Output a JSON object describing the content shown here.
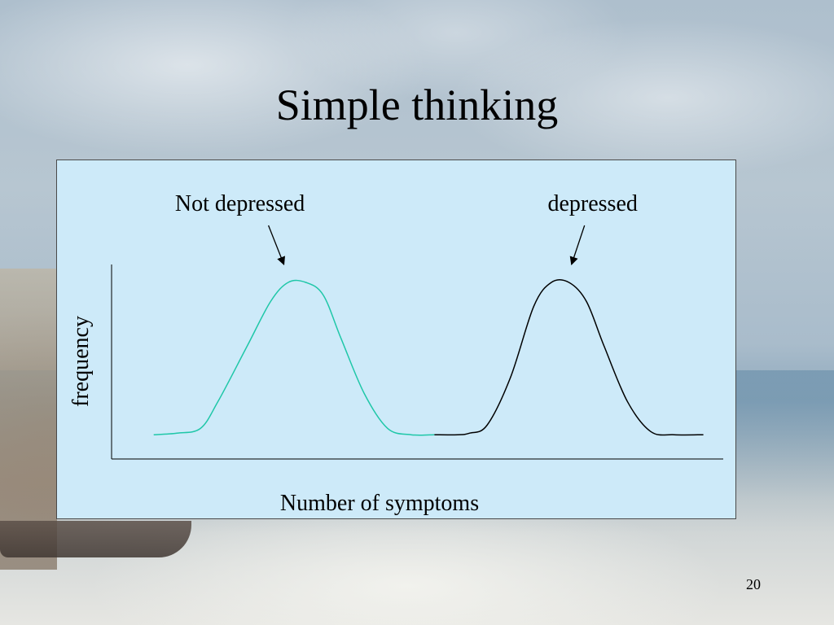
{
  "slide": {
    "title": "Simple thinking",
    "page_number": "20"
  },
  "chart_data": {
    "type": "line",
    "xlabel": "Number of symptoms",
    "ylabel": "frequency",
    "xlim": [
      0,
      100
    ],
    "ylim": [
      0,
      100
    ],
    "grid": false,
    "legend": "none",
    "series": [
      {
        "color": "#1fc7a8",
        "x": [
          4,
          8,
          12,
          15,
          20,
          24,
          27,
          30,
          33,
          36,
          40,
          44,
          48,
          52
        ],
        "y": [
          4,
          5,
          8,
          25,
          60,
          88,
          100,
          100,
          92,
          65,
          30,
          8,
          4,
          4
        ]
      },
      {
        "color": "#000000",
        "x": [
          52,
          56,
          58,
          61,
          65,
          69,
          72,
          75,
          78,
          81,
          85,
          89,
          93,
          98
        ],
        "y": [
          4,
          4,
          5,
          10,
          40,
          85,
          100,
          100,
          88,
          60,
          25,
          6,
          4,
          4
        ]
      }
    ],
    "annotations": [
      {
        "text": "Not depressed",
        "series_index": 0
      },
      {
        "text": "depressed",
        "series_index": 1
      }
    ]
  }
}
